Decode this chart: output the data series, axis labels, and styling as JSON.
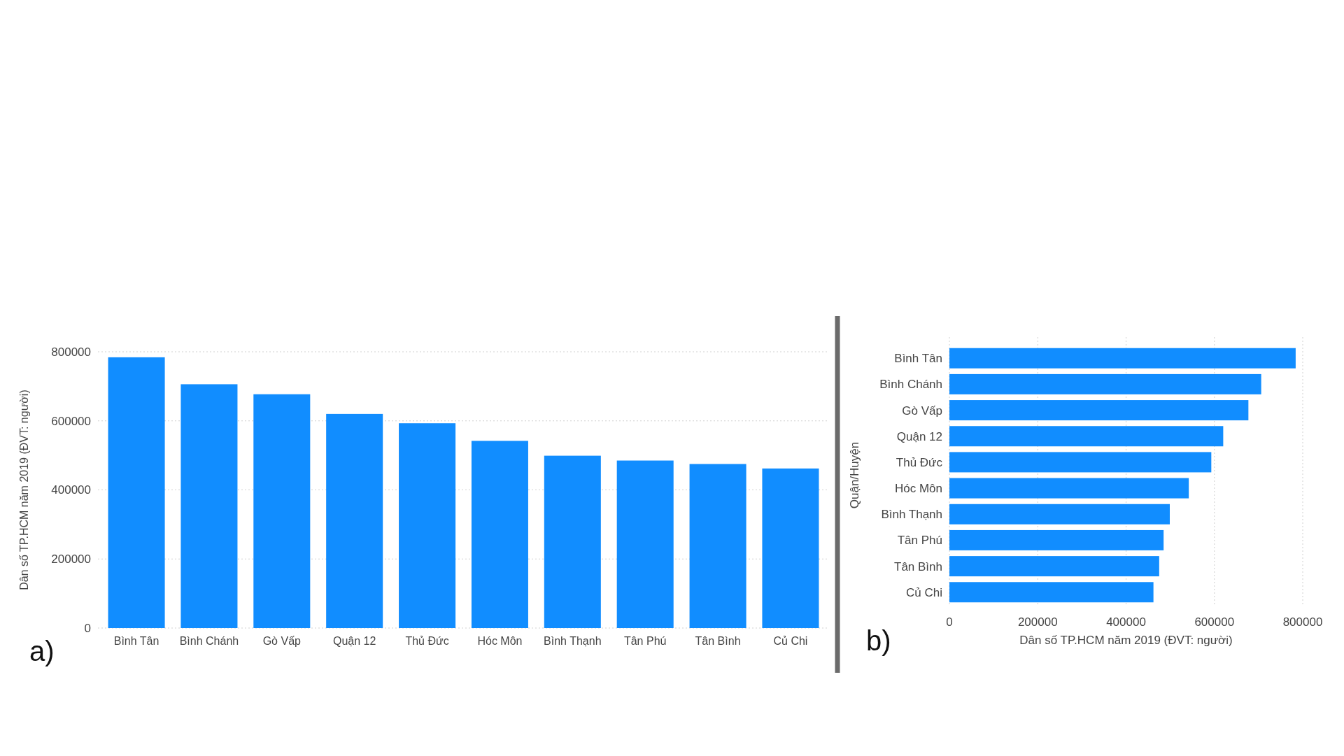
{
  "chart_data": [
    {
      "type": "bar",
      "ylabel": "Dân số TP.HCM năm 2019 (ĐVT: người)",
      "categories": [
        "Bình Tân",
        "Bình Chánh",
        "Gò Vấp",
        "Quận 12",
        "Thủ Đức",
        "Hóc Môn",
        "Bình Thạnh",
        "Tân Phú",
        "Tân Bình",
        "Củ Chi"
      ],
      "values": [
        784000,
        706000,
        677000,
        620000,
        593000,
        542000,
        499000,
        485000,
        475000,
        462000
      ],
      "color": "#118dff",
      "ylim": [
        0,
        800000
      ],
      "yticks": [
        0,
        200000,
        400000,
        600000,
        800000
      ],
      "grid": "y",
      "annotations": [
        "a)"
      ]
    },
    {
      "type": "bar",
      "orientation": "horizontal",
      "xlabel": "Dân số TP.HCM năm 2019 (ĐVT: người)",
      "ylabel": "Quận/Huyện",
      "categories": [
        "Bình Tân",
        "Bình Chánh",
        "Gò Vấp",
        "Quận 12",
        "Thủ Đức",
        "Hóc Môn",
        "Bình Thạnh",
        "Tân Phú",
        "Tân Bình",
        "Củ Chi"
      ],
      "values": [
        784000,
        706000,
        677000,
        620000,
        593000,
        542000,
        499000,
        485000,
        475000,
        462000
      ],
      "color": "#118dff",
      "xlim": [
        0,
        800000
      ],
      "xticks": [
        0,
        200000,
        400000,
        600000,
        800000
      ],
      "grid": "x",
      "annotations": [
        "b)"
      ]
    }
  ]
}
